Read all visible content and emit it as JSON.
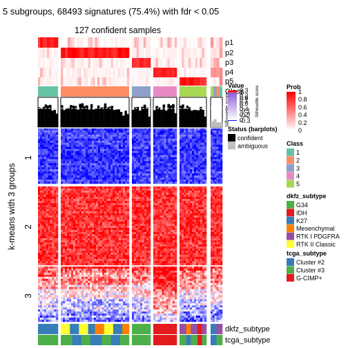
{
  "chart_data": {
    "type": "heatmap",
    "title": "5 subgroups, 68493 signatures (75.4%) with fdr < 0.05",
    "subtitle": "127 confident samples",
    "ylabel": "k-means with 3 groups",
    "row_groups": [
      "1",
      "2",
      "3"
    ],
    "column_groups": [
      {
        "class": "1",
        "samples": 9
      },
      {
        "class": "2",
        "samples": 30
      },
      {
        "class": "3",
        "samples": 8
      },
      {
        "class": "4",
        "samples": 10
      },
      {
        "class": "5",
        "samples": 12
      },
      {
        "class": "mixed",
        "samples": 4
      }
    ],
    "top_tracks": [
      "p1",
      "p2",
      "p3",
      "p4",
      "p5",
      "Class",
      "Silhouette score"
    ],
    "bottom_tracks": [
      "dkfz_subtype",
      "tcga_subtype"
    ],
    "legends": {
      "prob": {
        "title": "Prob",
        "ticks": [
          "1",
          "0.8",
          "0.6",
          "0.4",
          "0.2",
          "0"
        ]
      },
      "value": {
        "title": "Value",
        "ticks": [
          "0.3",
          "0.2",
          "0.1",
          "0",
          "-0.1",
          "-0.2",
          "-0.3"
        ]
      },
      "silhouette": {
        "title": "Silhouette score",
        "ticks": [
          "1",
          "0.8",
          "0.6",
          "0.4",
          "0.2",
          "0"
        ]
      },
      "status": {
        "title": "Status (barplots)",
        "items": [
          {
            "label": "confident",
            "color": "#000000"
          },
          {
            "label": "ambiguous",
            "color": "#bebebe"
          }
        ]
      },
      "class": {
        "title": "Class",
        "items": [
          {
            "label": "1",
            "color": "#66c2a5"
          },
          {
            "label": "2",
            "color": "#fc8d62"
          },
          {
            "label": "3",
            "color": "#8da0cb"
          },
          {
            "label": "4",
            "color": "#e78ac3"
          },
          {
            "label": "5",
            "color": "#a6d854"
          }
        ]
      },
      "dkfz_subtype": {
        "title": "dkfz_subtype",
        "items": [
          {
            "label": "G34",
            "color": "#4daf4a"
          },
          {
            "label": "IDH",
            "color": "#e41a1c"
          },
          {
            "label": "K27",
            "color": "#377eb8"
          },
          {
            "label": "Mesenchymal",
            "color": "#ff7f00"
          },
          {
            "label": "RTK I PDGFRA",
            "color": "#984ea3"
          },
          {
            "label": "RTK II Classic",
            "color": "#ffff33"
          }
        ]
      },
      "tcga_subtype": {
        "title": "tcga_subtype",
        "items": [
          {
            "label": "Cluster #2",
            "color": "#377eb8"
          },
          {
            "label": "Cluster #3",
            "color": "#4daf4a"
          },
          {
            "label": "G-CIMP+",
            "color": "#e41a1c"
          }
        ]
      }
    },
    "colors": {
      "high": "#ff0000",
      "mid": "#ffffff",
      "low": "#0000ff"
    }
  }
}
